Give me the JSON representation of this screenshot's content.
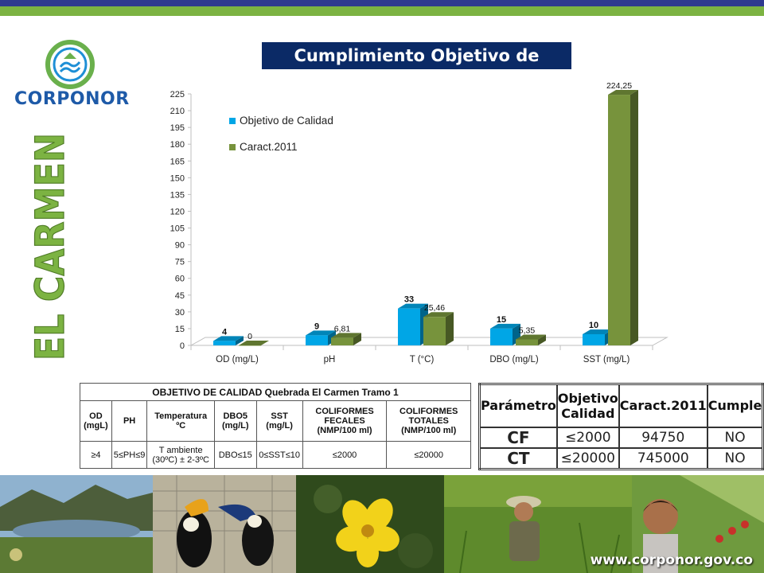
{
  "header": {
    "logo_text": "CORPONOR",
    "vertical_title": "EL CARMEN",
    "chart_title": "Cumplimiento Objetivo de Calidad"
  },
  "colors": {
    "series1": "#00a6e6",
    "series2": "#77933c",
    "title_bg": "#0b2a66",
    "vertical_title": "#7cb342",
    "band_blue": "#2f3a8f",
    "band_green": "#7cb342"
  },
  "chart_data": {
    "type": "bar",
    "title": "Cumplimiento Objetivo de Calidad",
    "categories": [
      "OD (mg/L)",
      "pH",
      "T (°C)",
      "DBO (mg/L)",
      "SST (mg/L)"
    ],
    "series": [
      {
        "name": "Objetivo de Calidad",
        "values": [
          4,
          9,
          33,
          15,
          10
        ],
        "labels": [
          "4",
          "9",
          "33",
          "15",
          "10"
        ]
      },
      {
        "name": "Caract.2011",
        "values": [
          0,
          6.81,
          25.46,
          5.35,
          224.25
        ],
        "labels": [
          "0",
          "6,81",
          "25,46",
          "5,35",
          "224,25"
        ]
      }
    ],
    "ylim": [
      0,
      225
    ],
    "yticks": [
      "0",
      "15",
      "30",
      "45",
      "60",
      "75",
      "90",
      "105",
      "120",
      "135",
      "150",
      "165",
      "180",
      "195",
      "210",
      "225"
    ],
    "xlabel": "",
    "ylabel": "",
    "legend_position": "top-left",
    "grid": false
  },
  "table_objective": {
    "title": "OBJETIVO DE CALIDAD Quebrada El Carmen Tramo 1",
    "headers": [
      "OD (mgL)",
      "PH",
      "Temperatura ºC",
      "DBO5 (mg/L)",
      "SST (mg/L)",
      "COLIFORMES FECALES (NMP/100 ml)",
      "COLIFORMES TOTALES (NMP/100 ml)"
    ],
    "values": [
      "≥4",
      "5≤PH≤9",
      "T ambiente (30ºC) ± 2-3ºC",
      "DBO≤15",
      "0≤SST≤10",
      "≤2000",
      "≤20000"
    ]
  },
  "table_compliance": {
    "headers": [
      "Parámetro",
      "Objetivo Calidad",
      "Caract.2011",
      "Cumple"
    ],
    "rows": [
      [
        "CF",
        "≤2000",
        "94750",
        "NO"
      ],
      [
        "CT",
        "≤20000",
        "745000",
        "NO"
      ]
    ]
  },
  "footer": {
    "url": "www.corponor.gov.co"
  }
}
